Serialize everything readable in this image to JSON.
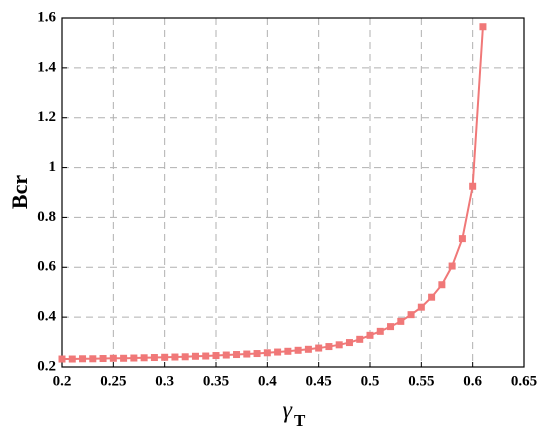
{
  "chart_data": {
    "type": "line",
    "xlabel": "γ",
    "xlabel_subscript": "T",
    "ylabel": "Bcr",
    "x": [
      0.2,
      0.21,
      0.22,
      0.23,
      0.24,
      0.25,
      0.26,
      0.27,
      0.28,
      0.29,
      0.3,
      0.31,
      0.32,
      0.33,
      0.34,
      0.35,
      0.36,
      0.37,
      0.38,
      0.39,
      0.4,
      0.41,
      0.42,
      0.43,
      0.44,
      0.45,
      0.46,
      0.47,
      0.48,
      0.49,
      0.5,
      0.51,
      0.52,
      0.53,
      0.54,
      0.55,
      0.56,
      0.57,
      0.58,
      0.59,
      0.6,
      0.61
    ],
    "series": [
      {
        "color": "#f07878",
        "values": [
          0.232,
          0.232,
          0.233,
          0.233,
          0.234,
          0.235,
          0.235,
          0.236,
          0.237,
          0.238,
          0.239,
          0.24,
          0.241,
          0.243,
          0.244,
          0.246,
          0.248,
          0.25,
          0.252,
          0.254,
          0.257,
          0.26,
          0.263,
          0.267,
          0.271,
          0.276,
          0.282,
          0.289,
          0.298,
          0.311,
          0.327,
          0.343,
          0.362,
          0.383,
          0.41,
          0.44,
          0.48,
          0.53,
          0.605,
          0.715,
          0.925,
          1.565
        ]
      }
    ],
    "xlim": [
      0.2,
      0.65
    ],
    "xticks": [
      0.2,
      0.25,
      0.3,
      0.35,
      0.4,
      0.45,
      0.5,
      0.55,
      0.6,
      0.65
    ],
    "ylim": [
      0.2,
      1.6
    ],
    "yticks": [
      0.2,
      0.4,
      0.6,
      0.8,
      1,
      1.2,
      1.4,
      1.6
    ],
    "grid": true
  }
}
